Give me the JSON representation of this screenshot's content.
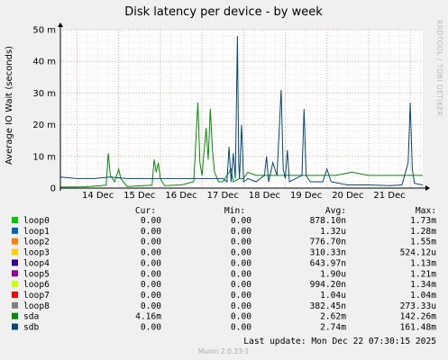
{
  "chart_data": {
    "type": "line",
    "title": "Disk latency per device - by week",
    "ylabel": "Average IO Wait (seconds)",
    "xlabel": "",
    "y_ticks": [
      {
        "label": "0",
        "value": 0
      },
      {
        "label": "10 m",
        "value": 0.01
      },
      {
        "label": "20 m",
        "value": 0.02
      },
      {
        "label": "30 m",
        "value": 0.03
      },
      {
        "label": "40 m",
        "value": 0.04
      },
      {
        "label": "50 m",
        "value": 0.05
      }
    ],
    "ylim": [
      0,
      0.05
    ],
    "x_ticks": [
      "14 Dec",
      "15 Dec",
      "16 Dec",
      "17 Dec",
      "18 Dec",
      "19 Dec",
      "20 Dec",
      "21 Dec"
    ],
    "x_range_days": [
      13.6,
      22.3
    ],
    "grid": true,
    "legend_position": "bottom",
    "colors": {
      "loop0": "#00cc00",
      "loop1": "#0066b3",
      "loop2": "#ff8000",
      "loop3": "#ffcc00",
      "loop4": "#330099",
      "loop5": "#990099",
      "loop6": "#ccff00",
      "loop7": "#ff0000",
      "loop8": "#808080",
      "sda": "#008f00",
      "sdb": "#00487d"
    },
    "sda_points": [
      [
        13.6,
        0.0003
      ],
      [
        14.2,
        0.0004
      ],
      [
        14.7,
        0.0009
      ],
      [
        14.75,
        0.011
      ],
      [
        14.8,
        0.004
      ],
      [
        14.9,
        0.002
      ],
      [
        15.0,
        0.006
      ],
      [
        15.05,
        0.003
      ],
      [
        15.2,
        0.0005
      ],
      [
        15.8,
        0.0009
      ],
      [
        15.85,
        0.009
      ],
      [
        15.9,
        0.005
      ],
      [
        15.95,
        0.008
      ],
      [
        16.0,
        0.003
      ],
      [
        16.1,
        0.0008
      ],
      [
        16.5,
        0.001
      ],
      [
        16.8,
        0.002
      ],
      [
        16.9,
        0.027
      ],
      [
        16.95,
        0.008
      ],
      [
        17.0,
        0.004
      ],
      [
        17.1,
        0.019
      ],
      [
        17.15,
        0.009
      ],
      [
        17.2,
        0.025
      ],
      [
        17.25,
        0.012
      ],
      [
        17.3,
        0.005
      ],
      [
        17.4,
        0.002
      ],
      [
        17.5,
        0.002
      ],
      [
        17.7,
        0.006
      ],
      [
        17.75,
        0.002
      ],
      [
        17.9,
        0.003
      ],
      [
        18.0,
        0.003
      ],
      [
        18.1,
        0.005
      ],
      [
        18.3,
        0.004
      ],
      [
        18.6,
        0.004
      ],
      [
        19.0,
        0.004
      ],
      [
        19.4,
        0.004
      ],
      [
        19.8,
        0.004
      ],
      [
        20.2,
        0.004
      ],
      [
        20.6,
        0.005
      ],
      [
        21.0,
        0.004
      ],
      [
        21.4,
        0.004
      ],
      [
        21.8,
        0.004
      ],
      [
        22.2,
        0.004
      ],
      [
        22.3,
        0.004
      ]
    ],
    "sdb_points": [
      [
        13.6,
        0.0035
      ],
      [
        14.0,
        0.003
      ],
      [
        14.4,
        0.003
      ],
      [
        14.8,
        0.0035
      ],
      [
        15.2,
        0.003
      ],
      [
        15.6,
        0.003
      ],
      [
        16.0,
        0.003
      ],
      [
        16.4,
        0.003
      ],
      [
        16.8,
        0.003
      ],
      [
        17.2,
        0.003
      ],
      [
        17.5,
        0.003
      ],
      [
        17.6,
        0.002
      ],
      [
        17.65,
        0.013
      ],
      [
        17.7,
        0.002
      ],
      [
        17.75,
        0.011
      ],
      [
        17.8,
        0.003
      ],
      [
        17.85,
        0.048
      ],
      [
        17.88,
        0.008
      ],
      [
        17.9,
        0.003
      ],
      [
        17.95,
        0.02
      ],
      [
        18.0,
        0.002
      ],
      [
        18.1,
        0.003
      ],
      [
        18.3,
        0.002
      ],
      [
        18.5,
        0.004
      ],
      [
        18.55,
        0.01
      ],
      [
        18.6,
        0.002
      ],
      [
        18.7,
        0.008
      ],
      [
        18.8,
        0.004
      ],
      [
        18.9,
        0.031
      ],
      [
        18.95,
        0.006
      ],
      [
        19.0,
        0.003
      ],
      [
        19.05,
        0.012
      ],
      [
        19.1,
        0.002
      ],
      [
        19.4,
        0.004
      ],
      [
        19.45,
        0.025
      ],
      [
        19.5,
        0.004
      ],
      [
        19.6,
        0.002
      ],
      [
        19.9,
        0.002
      ],
      [
        20.0,
        0.006
      ],
      [
        20.1,
        0.002
      ],
      [
        20.5,
        0.001
      ],
      [
        21.0,
        0.001
      ],
      [
        21.5,
        0.0008
      ],
      [
        21.8,
        0.001
      ],
      [
        21.95,
        0.008
      ],
      [
        22.0,
        0.027
      ],
      [
        22.05,
        0.006
      ],
      [
        22.1,
        0.0015
      ],
      [
        22.3,
        0.001
      ]
    ]
  },
  "legend": {
    "headers": {
      "cur": "Cur:",
      "min": "Min:",
      "avg": "Avg:",
      "max": "Max:"
    },
    "rows": [
      {
        "name": "loop0",
        "cur": "0.00",
        "min": "0.00",
        "avg": "878.10n",
        "max": "1.73m"
      },
      {
        "name": "loop1",
        "cur": "0.00",
        "min": "0.00",
        "avg": "1.32u",
        "max": "1.28m"
      },
      {
        "name": "loop2",
        "cur": "0.00",
        "min": "0.00",
        "avg": "776.70n",
        "max": "1.55m"
      },
      {
        "name": "loop3",
        "cur": "0.00",
        "min": "0.00",
        "avg": "310.33n",
        "max": "524.12u"
      },
      {
        "name": "loop4",
        "cur": "0.00",
        "min": "0.00",
        "avg": "643.97n",
        "max": "1.13m"
      },
      {
        "name": "loop5",
        "cur": "0.00",
        "min": "0.00",
        "avg": "1.90u",
        "max": "1.21m"
      },
      {
        "name": "loop6",
        "cur": "0.00",
        "min": "0.00",
        "avg": "994.20n",
        "max": "1.34m"
      },
      {
        "name": "loop7",
        "cur": "0.00",
        "min": "0.00",
        "avg": "1.04u",
        "max": "1.04m"
      },
      {
        "name": "loop8",
        "cur": "0.00",
        "min": "0.00",
        "avg": "382.45n",
        "max": "273.33u"
      },
      {
        "name": "sda",
        "cur": "4.16m",
        "min": "0.00",
        "avg": "2.62m",
        "max": "142.26m"
      },
      {
        "name": "sdb",
        "cur": "0.00",
        "min": "0.00",
        "avg": "2.74m",
        "max": "161.48m"
      }
    ]
  },
  "last_update": "Last update:  Mon Dec 22 07:30:15 2025",
  "watermark": "RRDTOOL / TOBI OETIKER",
  "footer": "Munin 2.0.33-1"
}
